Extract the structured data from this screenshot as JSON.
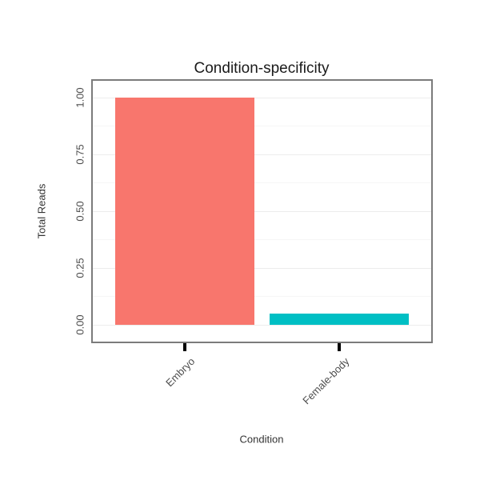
{
  "chart_data": {
    "type": "bar",
    "title": "Condition-specificity",
    "xlabel": "Condition",
    "ylabel": "Total Reads",
    "categories": [
      "Embryo",
      "Female-body"
    ],
    "values": [
      1.0,
      0.05
    ],
    "series_colors": [
      "#F8766D",
      "#00BFC4"
    ],
    "ylim": [
      0,
      1.0
    ],
    "yticks": [
      0.0,
      0.25,
      0.5,
      0.75,
      1.0
    ],
    "ytick_labels": [
      "0.00",
      "0.25",
      "0.50",
      "0.75",
      "1.00"
    ],
    "grid": "horizontal-major-and-minor",
    "legend": "none",
    "panel_border_color": "#7b7b7b",
    "background_color": "#ffffff"
  }
}
